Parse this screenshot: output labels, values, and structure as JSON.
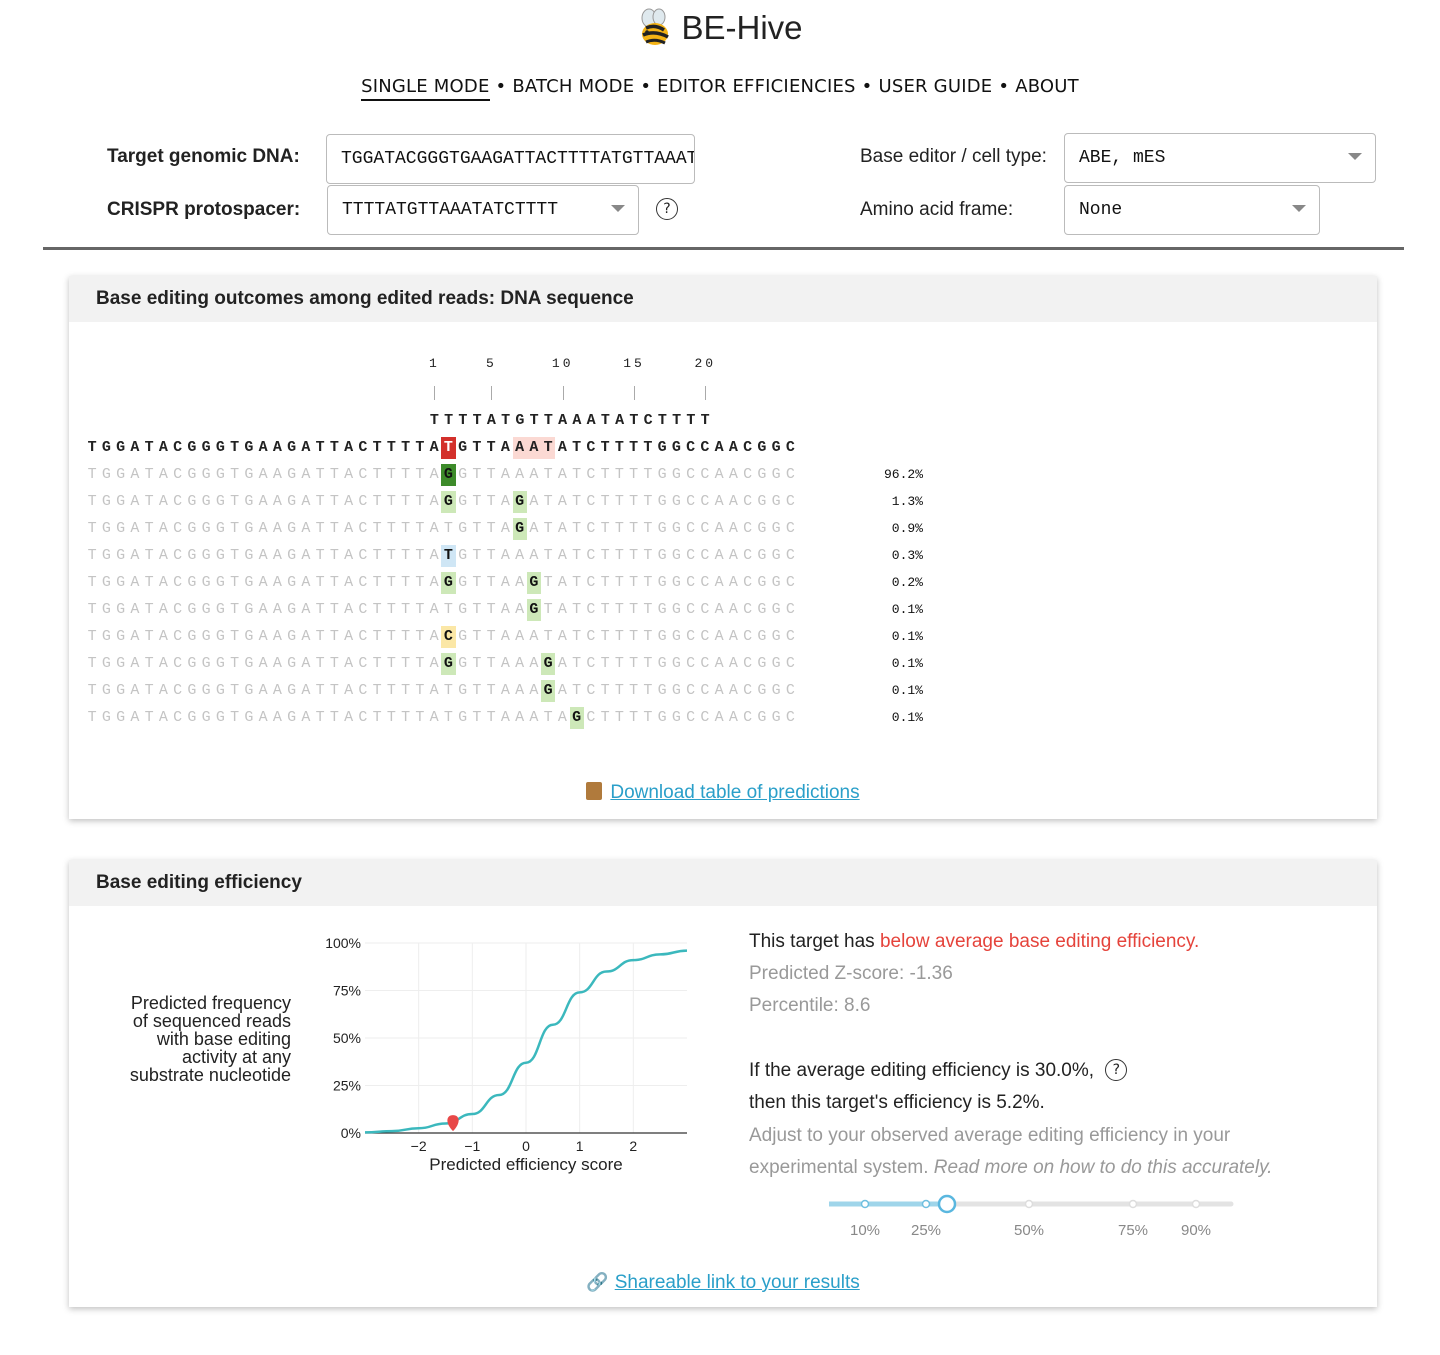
{
  "app": {
    "title": "BE-Hive",
    "logo_icon": "bee-icon"
  },
  "nav": {
    "items": [
      {
        "label": "SINGLE MODE",
        "active": true
      },
      {
        "label": "BATCH MODE",
        "active": false
      },
      {
        "label": "EDITOR EFFICIENCIES",
        "active": false
      },
      {
        "label": "USER GUIDE",
        "active": false
      },
      {
        "label": "ABOUT",
        "active": false
      }
    ],
    "separator": "•"
  },
  "form": {
    "target_label": "Target genomic DNA:",
    "target_value": "TGGATACGGGTGAAGATTACTTTTATGTTAAATATCTTTTGGCCAACGGC",
    "protospacer_label": "CRISPR protospacer:",
    "protospacer_value": "TTTTATGTTAAATATCTTTT",
    "help_symbol": "?",
    "editor_label": "Base editor / cell type:",
    "editor_value": "ABE, mES",
    "frame_label": "Amino acid frame:",
    "frame_value": "None"
  },
  "outcomes": {
    "title": "Base editing outcomes among edited reads: DNA sequence",
    "positions": [
      "1",
      "5",
      "10",
      "15",
      "20"
    ],
    "protospacer": "TTTTATGTTAAATATCTTTT",
    "reference": "TGGATACGGGTGAAGATTACTTTTATGTTAAATATCTTTTGGCCAACGGC",
    "rows": [
      {
        "percent": "96.2%",
        "edits": [
          {
            "pos": 25,
            "base": "G"
          }
        ]
      },
      {
        "percent": "1.3%",
        "edits": [
          {
            "pos": 25,
            "base": "G"
          },
          {
            "pos": 30,
            "base": "G"
          }
        ]
      },
      {
        "percent": "0.9%",
        "edits": [
          {
            "pos": 30,
            "base": "G"
          }
        ]
      },
      {
        "percent": "0.3%",
        "edits": [
          {
            "pos": 25,
            "base": "T"
          }
        ]
      },
      {
        "percent": "0.2%",
        "edits": [
          {
            "pos": 25,
            "base": "G"
          },
          {
            "pos": 31,
            "base": "G"
          }
        ]
      },
      {
        "percent": "0.1%",
        "edits": [
          {
            "pos": 31,
            "base": "G"
          }
        ]
      },
      {
        "percent": "0.1%",
        "edits": [
          {
            "pos": 25,
            "base": "C"
          }
        ]
      },
      {
        "percent": "0.1%",
        "edits": [
          {
            "pos": 25,
            "base": "G"
          },
          {
            "pos": 32,
            "base": "G"
          }
        ]
      },
      {
        "percent": "0.1%",
        "edits": [
          {
            "pos": 32,
            "base": "G"
          }
        ]
      },
      {
        "percent": "0.1%",
        "edits": [
          {
            "pos": 34,
            "base": "G"
          }
        ]
      }
    ],
    "download_label": "Download table of predictions",
    "colors": {
      "G": "#cde8b8",
      "T": "#cfe6f5",
      "C": "#fbe7a6",
      "A_ref": "#d3302b",
      "G_top": "#3d8b2a",
      "window": "#fbd9d3"
    }
  },
  "efficiency": {
    "title": "Base editing efficiency",
    "y_label_lines": [
      "Predicted frequency",
      "of sequenced reads",
      "with base editing",
      "activity at any",
      "substrate nucleotide"
    ],
    "chart_data": {
      "type": "line",
      "xlabel": "Predicted efficiency score",
      "x_ticks": [
        "−2",
        "−1",
        "0",
        "1",
        "2"
      ],
      "y_ticks": [
        "100%",
        "75%",
        "50%",
        "25%",
        "0%"
      ],
      "x": [
        -3,
        -2.5,
        -2,
        -1.5,
        -1,
        -0.5,
        0,
        0.5,
        1,
        1.5,
        2,
        2.5,
        3
      ],
      "y": [
        0.3,
        1,
        2.5,
        5,
        10,
        20,
        37,
        57,
        74,
        85,
        91,
        94,
        96
      ],
      "ylim": [
        0,
        100
      ],
      "xlim": [
        -3,
        3
      ],
      "marker": {
        "x": -1.36,
        "y": 5.2
      },
      "line_color": "#3bb8bd",
      "marker_color": "#e84848"
    },
    "text_prefix": "This target has ",
    "text_status": "below average base editing efficiency.",
    "zscore": "Predicted Z-score: -1.36",
    "percentile": "Percentile: 8.6",
    "avg_line": "If the average editing efficiency is 30.0%,",
    "then_line": "then this target's efficiency is 5.2%.",
    "adjust_line1": "Adjust to your observed average editing efficiency in your",
    "adjust_line2_plain": "experimental system. ",
    "adjust_line2_italic": "Read more on how to do this accurately.",
    "slider_labels": [
      "10%",
      "25%",
      "50%",
      "75%",
      "90%"
    ],
    "slider_value_percent": 30,
    "share_label": "Shareable link to your results"
  }
}
